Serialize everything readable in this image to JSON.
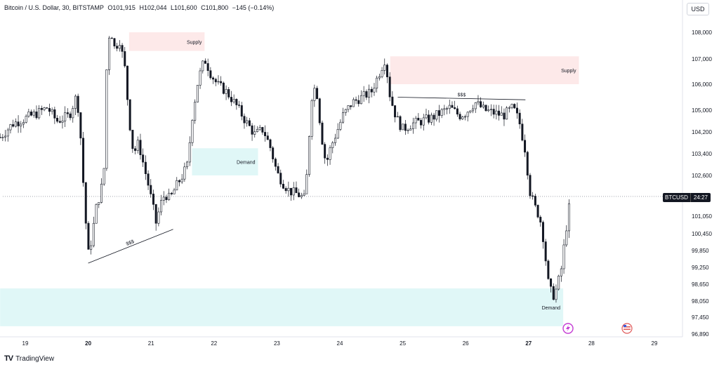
{
  "header": {
    "symbol": "Bitcoin / U.S. Dollar, 30, BITSTAMP",
    "open": "O101,915",
    "high": "H102,044",
    "low": "L101,600",
    "close": "C101,800",
    "change": "−145 (−0.14%)"
  },
  "currency_button": "USD",
  "branding": {
    "name": "TradingView"
  },
  "price_tag": {
    "symbol": "BTCUSD",
    "countdown": "24:27"
  },
  "colors": {
    "supply_zone": "#fde9e9",
    "demand_zone": "#e0f7f7",
    "candle": "#131722",
    "grid_text": "#131722"
  },
  "chart_data": {
    "type": "candlestick",
    "title": "",
    "xlabel": "",
    "ylabel": "",
    "x_ticks": [
      "19",
      "20",
      "21",
      "22",
      "23",
      "24",
      "25",
      "26",
      "27",
      "28",
      "29"
    ],
    "y_ticks": [
      108000,
      107000,
      106000,
      105000,
      104200,
      103400,
      102600,
      101050,
      100450,
      99850,
      99250,
      98650,
      98050,
      97450,
      96890
    ],
    "y_tick_labels": [
      "108,000",
      "107,000",
      "106,000",
      "105,000",
      "104,200",
      "103,400",
      "102,600",
      "101,050",
      "100,450",
      "99,850",
      "99,250",
      "98,650",
      "98,050",
      "97,450",
      "96,890"
    ],
    "last_price": 101800,
    "close_path": [
      [
        18.6,
        104000
      ],
      [
        18.8,
        104500
      ],
      [
        19.0,
        104700
      ],
      [
        19.2,
        104900
      ],
      [
        19.35,
        105100
      ],
      [
        19.5,
        104600
      ],
      [
        19.7,
        104800
      ],
      [
        19.82,
        105600
      ],
      [
        19.88,
        104000
      ],
      [
        19.95,
        101200
      ],
      [
        20.0,
        99700
      ],
      [
        20.06,
        100300
      ],
      [
        20.12,
        101300
      ],
      [
        20.2,
        102000
      ],
      [
        20.25,
        102700
      ],
      [
        20.3,
        107200
      ],
      [
        20.35,
        108200
      ],
      [
        20.42,
        107400
      ],
      [
        20.5,
        107700
      ],
      [
        20.58,
        106700
      ],
      [
        20.65,
        104700
      ],
      [
        20.72,
        103400
      ],
      [
        20.8,
        103800
      ],
      [
        20.88,
        103000
      ],
      [
        20.95,
        102300
      ],
      [
        21.02,
        101500
      ],
      [
        21.08,
        100800
      ],
      [
        21.15,
        101500
      ],
      [
        21.22,
        101900
      ],
      [
        21.3,
        101700
      ],
      [
        21.4,
        102200
      ],
      [
        21.5,
        102600
      ],
      [
        21.58,
        103000
      ],
      [
        21.65,
        104700
      ],
      [
        21.75,
        106200
      ],
      [
        21.85,
        107000
      ],
      [
        21.95,
        106400
      ],
      [
        22.05,
        106000
      ],
      [
        22.2,
        105700
      ],
      [
        22.35,
        105200
      ],
      [
        22.5,
        104600
      ],
      [
        22.65,
        104100
      ],
      [
        22.78,
        104300
      ],
      [
        22.9,
        103600
      ],
      [
        23.0,
        102700
      ],
      [
        23.1,
        102300
      ],
      [
        23.2,
        102000
      ],
      [
        23.32,
        101900
      ],
      [
        23.45,
        101700
      ],
      [
        23.55,
        105500
      ],
      [
        23.62,
        106000
      ],
      [
        23.7,
        104200
      ],
      [
        23.78,
        103000
      ],
      [
        23.85,
        103600
      ],
      [
        23.95,
        104200
      ],
      [
        24.05,
        104800
      ],
      [
        24.2,
        105300
      ],
      [
        24.35,
        105500
      ],
      [
        24.5,
        105700
      ],
      [
        24.62,
        106400
      ],
      [
        24.72,
        107000
      ],
      [
        24.8,
        105500
      ],
      [
        24.9,
        104700
      ],
      [
        25.0,
        104300
      ],
      [
        25.15,
        104500
      ],
      [
        25.3,
        104600
      ],
      [
        25.45,
        104700
      ],
      [
        25.6,
        104900
      ],
      [
        25.75,
        105100
      ],
      [
        25.9,
        104800
      ],
      [
        26.0,
        104900
      ],
      [
        26.15,
        105300
      ],
      [
        26.3,
        105000
      ],
      [
        26.45,
        104900
      ],
      [
        26.6,
        104800
      ],
      [
        26.75,
        105100
      ],
      [
        26.85,
        104600
      ],
      [
        26.95,
        103500
      ],
      [
        27.02,
        102000
      ],
      [
        27.1,
        101400
      ],
      [
        27.18,
        101000
      ],
      [
        27.25,
        100100
      ],
      [
        27.3,
        98800
      ],
      [
        27.38,
        98200
      ],
      [
        27.45,
        98500
      ],
      [
        27.52,
        99200
      ],
      [
        27.58,
        100300
      ],
      [
        27.63,
        101200
      ],
      [
        27.68,
        101800
      ]
    ],
    "zones": [
      {
        "label": "Supply",
        "x0": 20.65,
        "x1": 21.85,
        "y0": 107300,
        "y1": 108000
      },
      {
        "label": "Supply",
        "x0": 24.8,
        "x1": 27.8,
        "y0": 106000,
        "y1": 107100
      },
      {
        "label": "Demand",
        "x0": 21.65,
        "x1": 22.7,
        "y0": 102600,
        "y1": 103600
      },
      {
        "label": "Demand",
        "x0": 18.6,
        "x1": 27.55,
        "y0": 97150,
        "y1": 98500
      }
    ],
    "trendlines": [
      {
        "label": "$$$",
        "x0": 20.0,
        "y0": 99400,
        "x1": 21.35,
        "y1": 100600
      },
      {
        "label": "$$$",
        "x0": 24.92,
        "y0": 105500,
        "x1": 26.95,
        "y1": 105400
      }
    ]
  }
}
